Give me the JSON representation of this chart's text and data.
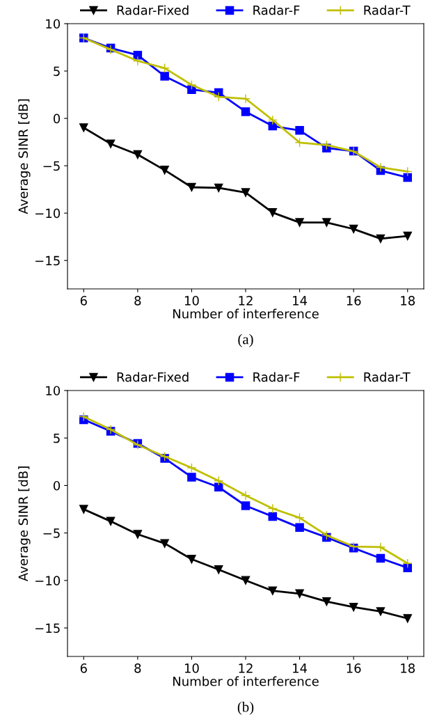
{
  "chart_data": [
    {
      "type": "line",
      "xlabel": "Number of interference",
      "ylabel": "Average SINR [dB]",
      "annotations": [
        "(a)"
      ],
      "x": [
        6,
        7,
        8,
        9,
        10,
        11,
        12,
        13,
        14,
        15,
        16,
        17,
        18
      ],
      "xlim": [
        5.4,
        18.6
      ],
      "xticks": [
        6,
        8,
        10,
        12,
        14,
        16,
        18
      ],
      "ylim": [
        -18,
        10
      ],
      "yticks": [
        {
          "value": -15,
          "label": "−15"
        },
        {
          "value": -10,
          "label": "−10"
        },
        {
          "value": -5,
          "label": "−5"
        },
        0,
        5,
        10
      ],
      "grid": false,
      "legend": "top",
      "line_style": "solid",
      "series": [
        {
          "name": "Radar-Fixed",
          "color": "#000000",
          "marker": "triangle",
          "values": [
            -0.98,
            -2.69,
            -3.82,
            -5.46,
            -7.27,
            -7.34,
            -7.83,
            -9.94,
            -10.99,
            -10.99,
            -11.68,
            -12.7,
            -12.41
          ]
        },
        {
          "name": "Radar-F",
          "color": "#0000ff",
          "marker": "square",
          "values": [
            8.49,
            7.42,
            6.68,
            4.46,
            3.04,
            2.72,
            0.71,
            -0.81,
            -1.27,
            -3.13,
            -3.45,
            -5.51,
            -6.24
          ]
        },
        {
          "name": "Radar-T",
          "color": "#bfbf00",
          "marker": "cross",
          "values": [
            8.49,
            7.27,
            6.07,
            5.31,
            3.53,
            2.28,
            2.08,
            -0.17,
            -2.55,
            -2.82,
            -3.48,
            -5.17,
            -5.61
          ]
        }
      ]
    },
    {
      "type": "line",
      "xlabel": "Number of interference",
      "ylabel": "Average SINR [dB]",
      "annotations": [
        "(b)"
      ],
      "x": [
        6,
        7,
        8,
        9,
        10,
        11,
        12,
        13,
        14,
        15,
        16,
        17,
        18
      ],
      "xlim": [
        5.4,
        18.6
      ],
      "xticks": [
        6,
        8,
        10,
        12,
        14,
        16,
        18
      ],
      "ylim": [
        -18,
        10
      ],
      "yticks": [
        {
          "value": -15,
          "label": "−15"
        },
        {
          "value": -10,
          "label": "−10"
        },
        {
          "value": -5,
          "label": "−5"
        },
        0,
        5,
        10
      ],
      "grid": false,
      "legend": "top",
      "line_style": "solid",
      "series": [
        {
          "name": "Radar-Fixed",
          "color": "#000000",
          "marker": "triangle",
          "values": [
            -2.5,
            -3.77,
            -5.14,
            -6.1,
            -7.76,
            -8.86,
            -9.99,
            -11.09,
            -11.39,
            -12.22,
            -12.81,
            -13.27,
            -14.0
          ]
        },
        {
          "name": "Radar-F",
          "color": "#0000ff",
          "marker": "square",
          "values": [
            6.93,
            5.71,
            4.43,
            2.86,
            0.88,
            -0.17,
            -2.13,
            -3.26,
            -4.43,
            -5.46,
            -6.59,
            -7.66,
            -8.67
          ]
        },
        {
          "name": "Radar-T",
          "color": "#bfbf00",
          "marker": "cross",
          "values": [
            7.25,
            5.9,
            4.28,
            3.06,
            1.86,
            0.49,
            -1.05,
            -2.42,
            -3.4,
            -5.24,
            -6.42,
            -6.49,
            -8.2
          ]
        }
      ]
    }
  ]
}
